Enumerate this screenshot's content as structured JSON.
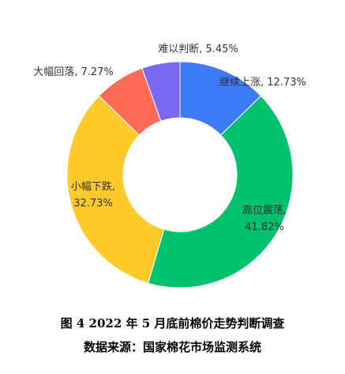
{
  "chart_data": {
    "type": "pie",
    "variant": "donut",
    "slices": [
      {
        "label": "继续上涨",
        "value": 12.73,
        "value_text": "12.73%",
        "color": "#3B7BF6",
        "label_lines": [
          "继续上涨, 12.73%"
        ]
      },
      {
        "label": "高位震荡",
        "value": 41.82,
        "value_text": "41.82%",
        "color": "#00C16E",
        "label_lines": [
          "高位震荡,",
          "41.82%"
        ]
      },
      {
        "label": "小幅下跌",
        "value": 32.73,
        "value_text": "32.73%",
        "color": "#FFCA2A",
        "label_lines": [
          "小幅下跌,",
          "32.73%"
        ]
      },
      {
        "label": "大幅回落",
        "value": 7.27,
        "value_text": "7.27%",
        "color": "#FF6B57",
        "label_lines": [
          "大幅回落, 7.27%"
        ]
      },
      {
        "label": "难以判断",
        "value": 5.45,
        "value_text": "5.45%",
        "color": "#7B68F2",
        "label_lines": [
          "难以判断, 5.45%"
        ]
      }
    ],
    "start": "top",
    "direction": "clockwise"
  },
  "caption": {
    "title": "图 4  2022 年 5 月底前棉价走势判断调查",
    "source": "数据来源：国家棉花市场监测系统"
  }
}
